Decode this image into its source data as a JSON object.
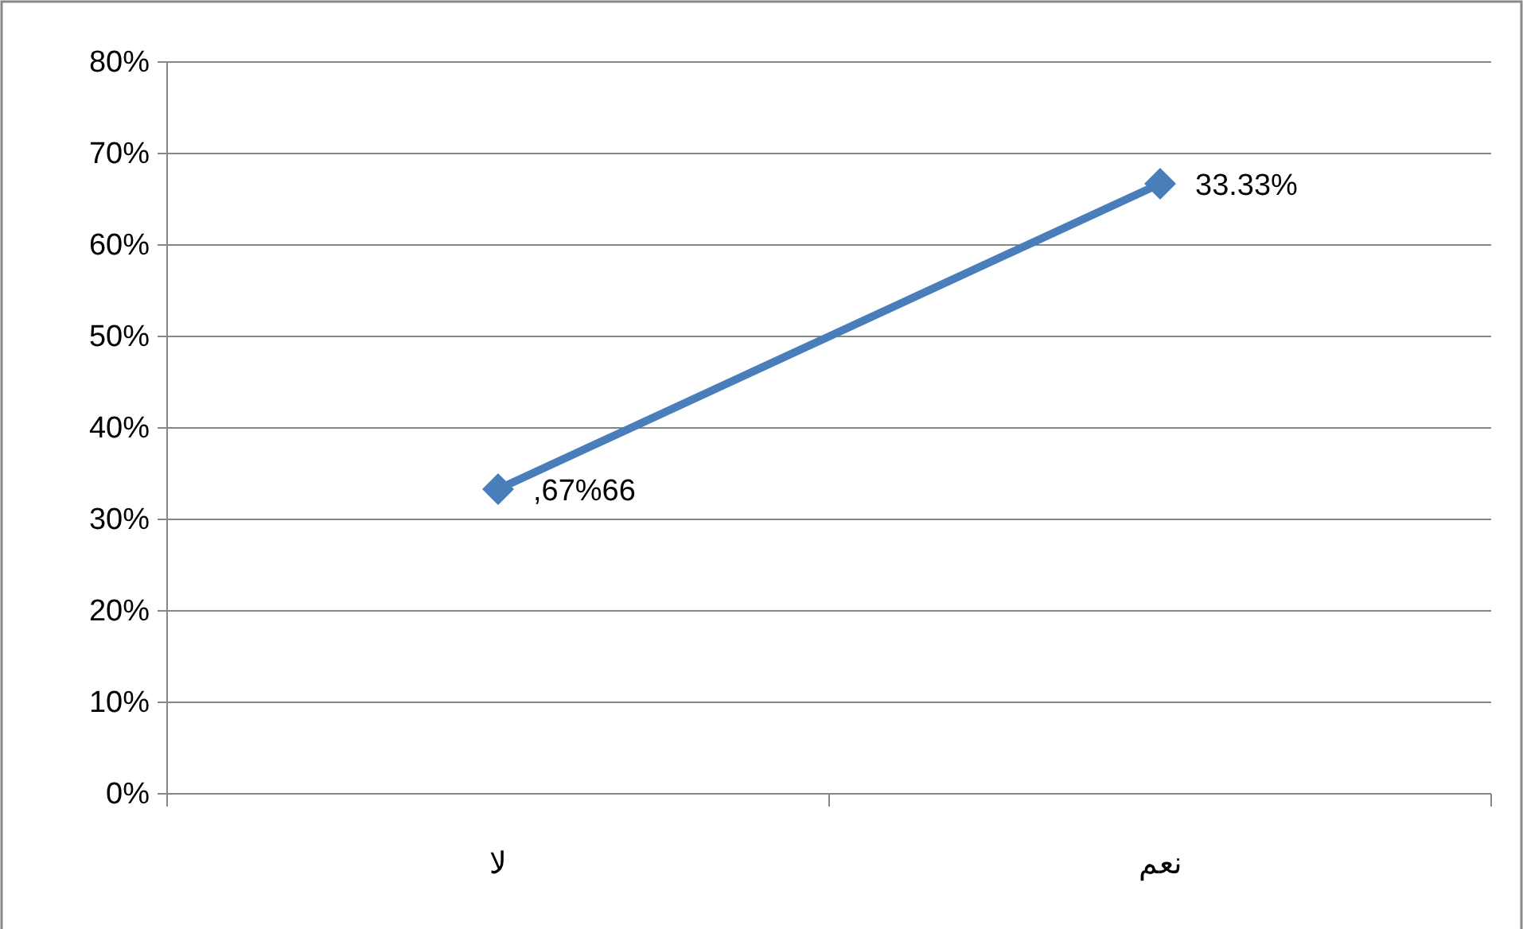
{
  "chart_data": {
    "type": "line",
    "categories": [
      "لا",
      "نعم"
    ],
    "series": [
      {
        "color": "#4a7ebb",
        "values": [
          33.3,
          66.7
        ]
      }
    ],
    "annotations": [
      ",67%66",
      "33.33%"
    ],
    "ylim": [
      0,
      80
    ],
    "yticks": [
      {
        "value": 0,
        "label": "0%"
      },
      {
        "value": 10,
        "label": "10%"
      },
      {
        "value": 20,
        "label": "20%"
      },
      {
        "value": 30,
        "label": "30%"
      },
      {
        "value": 40,
        "label": "40%"
      },
      {
        "value": 50,
        "label": "50%"
      },
      {
        "value": 60,
        "label": "60%"
      },
      {
        "value": 70,
        "label": "70%"
      },
      {
        "value": 80,
        "label": "80%"
      }
    ],
    "grid": "y",
    "marker": "diamond",
    "line_style": "solid"
  }
}
